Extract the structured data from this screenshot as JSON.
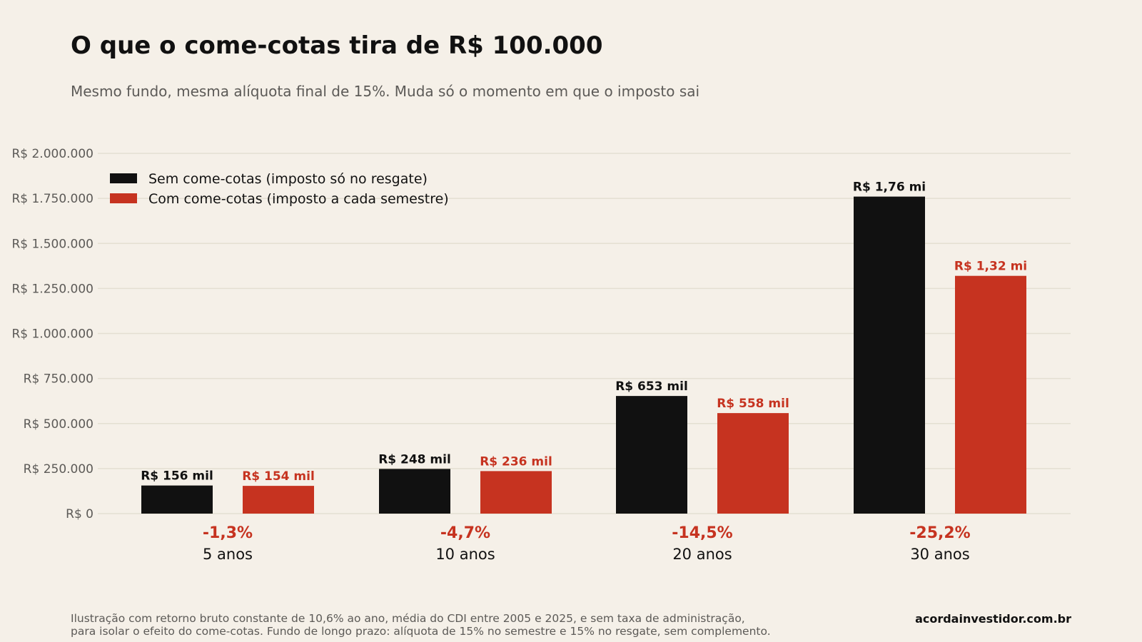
{
  "title": "O que o come-cotas tira de R$ 100.000",
  "subtitle": "Mesmo fundo, mesma alíquota final de 15%. Muda só o momento em que o imposto sai",
  "footnote": {
    "line1": "Ilustração com retorno bruto constante de 10,6% ao ano, média do CDI entre 2005 e 2025, e sem taxa de administração,",
    "line2": "para isolar o efeito do come-cotas. Fundo de longo prazo: alíquota de 15% no semestre e 15% no resgate, sem complemento."
  },
  "source": "acordainvestidor.com.br",
  "colors": {
    "background": "#f5f0e8",
    "black_series": "#111111",
    "red_series": "#c63320",
    "grid": "#e4dfd2",
    "axis_text": "#5c5a57"
  },
  "chart_data": {
    "type": "bar",
    "categories": [
      "5 anos",
      "10 anos",
      "20 anos",
      "30 anos"
    ],
    "differences": [
      "-1,3%",
      "-4,7%",
      "-14,5%",
      "-25,2%"
    ],
    "series": [
      {
        "name": "Sem come-cotas (imposto só no resgate)",
        "color": "#111111",
        "values": [
          156000,
          248000,
          653000,
          1760000
        ],
        "labels": [
          "R$ 156 mil",
          "R$ 248 mil",
          "R$ 653 mil",
          "R$ 1,76 mi"
        ]
      },
      {
        "name": "Com come-cotas (imposto a cada semestre)",
        "color": "#c63320",
        "values": [
          154000,
          236000,
          558000,
          1320000
        ],
        "labels": [
          "R$ 154 mil",
          "R$ 236 mil",
          "R$ 558 mil",
          "R$ 1,32 mi"
        ]
      }
    ],
    "ylim": [
      0,
      2000000
    ],
    "yticks": [
      0,
      250000,
      500000,
      750000,
      1000000,
      1250000,
      1500000,
      1750000,
      2000000
    ],
    "ytick_labels": [
      "R$ 0",
      "R$ 250.000",
      "R$ 500.000",
      "R$ 750.000",
      "R$ 1.000.000",
      "R$ 1.250.000",
      "R$ 1.500.000",
      "R$ 1.750.000",
      "R$ 2.000.000"
    ],
    "grid": true,
    "legend_position": "top-left"
  }
}
